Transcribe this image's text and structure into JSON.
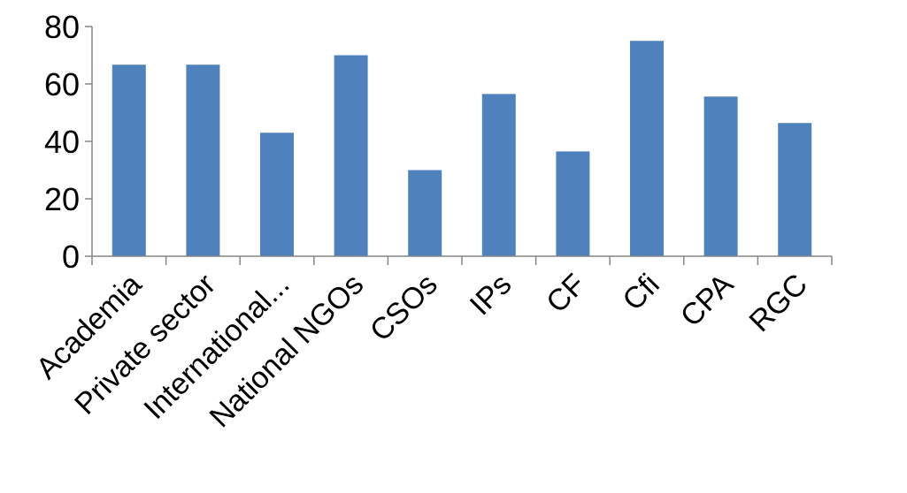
{
  "chart_data": {
    "type": "bar",
    "title": "",
    "xlabel": "",
    "ylabel": "",
    "categories": [
      "Academia",
      "Private sector",
      "International...",
      "National NGOs",
      "CSOs",
      "IPs",
      "CF",
      "Cfi",
      "CPA",
      "RGC"
    ],
    "values": [
      66.7,
      66.7,
      43,
      70,
      30,
      56.5,
      36.5,
      75,
      55.6,
      46.4
    ],
    "ylim": [
      0,
      80
    ],
    "yticks": [
      "0",
      "20",
      "40",
      "60",
      "80"
    ],
    "grid": false,
    "legend": "none",
    "bar_color": "#4f81bd",
    "axis_color": "#868686"
  }
}
